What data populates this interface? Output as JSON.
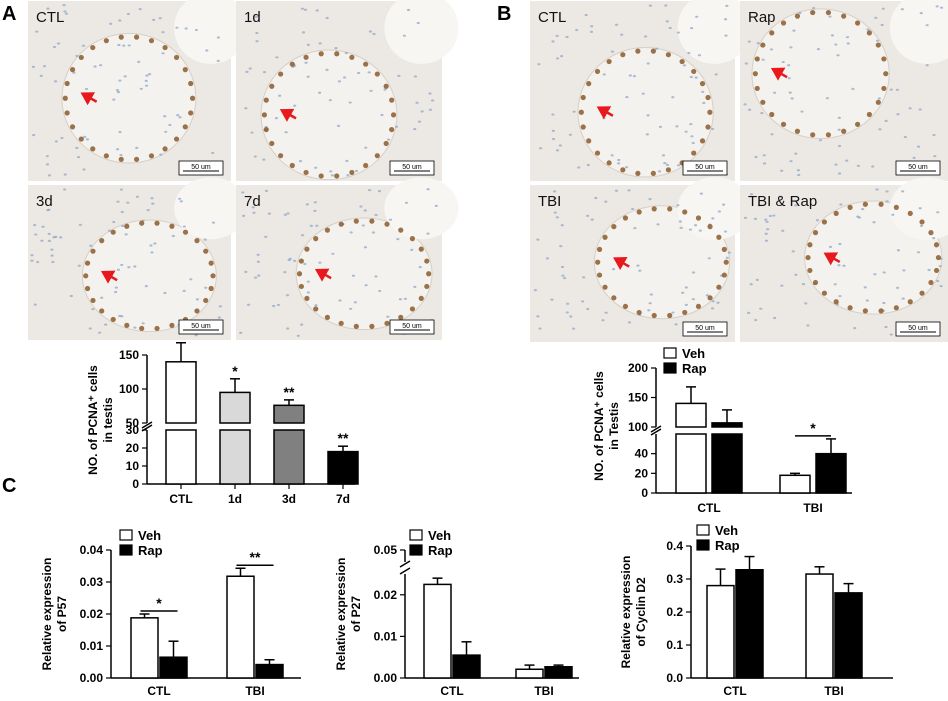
{
  "panels": {
    "A": {
      "letter": "A",
      "micrographs": [
        {
          "label": "CTL",
          "scale": "50 um"
        },
        {
          "label": "1d",
          "scale": "50 um"
        },
        {
          "label": "3d",
          "scale": "50 um"
        },
        {
          "label": "7d",
          "scale": "50 um"
        }
      ]
    },
    "B": {
      "letter": "B",
      "micrographs": [
        {
          "label": "CTL",
          "scale": "50 um"
        },
        {
          "label": "Rap",
          "scale": "50 um"
        },
        {
          "label": "TBI",
          "scale": "50 um"
        },
        {
          "label": "TBI & Rap",
          "scale": "50 um"
        }
      ]
    },
    "C": {
      "letter": "C"
    }
  },
  "colors": {
    "bar_light": "#d9d9d9",
    "bar_mid": "#808080",
    "bar_dark": "#000000",
    "arrow": "#e8191c",
    "tissue": "#ece9e4"
  },
  "chart_data": [
    {
      "id": "A-bar",
      "type": "bar",
      "ylabel_lines": [
        "NO. of PCNA⁺ cells",
        "in testis"
      ],
      "categories": [
        "CTL",
        "1d",
        "3d",
        "7d"
      ],
      "values": [
        140,
        95,
        76,
        18
      ],
      "errors": [
        28,
        20,
        8,
        3
      ],
      "bar_colors": [
        "#ffffff",
        "#d9d9d9",
        "#808080",
        "#000000"
      ],
      "ylim": [
        0,
        150
      ],
      "axis_break": [
        30,
        50
      ],
      "yticks_lower": [
        "0",
        "10",
        "20",
        "30"
      ],
      "yticks_upper": [
        "50",
        "100",
        "150"
      ],
      "significance": [
        "",
        "*",
        "**",
        "**"
      ]
    },
    {
      "id": "B-bar",
      "type": "bar",
      "ylabel_lines": [
        "NO. of PCNA⁺ cells",
        "in Testis"
      ],
      "categories": [
        "CTL",
        "TBI"
      ],
      "series": [
        {
          "name": "Veh",
          "values": [
            140,
            18
          ],
          "errors": [
            28,
            2
          ]
        },
        {
          "name": "Rap",
          "values": [
            107,
            40
          ],
          "errors": [
            22,
            15
          ]
        }
      ],
      "legend": "top-left",
      "ylim": [
        0,
        200
      ],
      "axis_break": [
        60,
        100
      ],
      "yticks_lower": [
        "0",
        "20",
        "40"
      ],
      "yticks_upper": [
        "100",
        "150",
        "200"
      ],
      "significance_label": "*"
    },
    {
      "id": "C-P57",
      "type": "bar",
      "ylabel_lines": [
        "Relative expression",
        "of P57"
      ],
      "categories": [
        "CTL",
        "TBI"
      ],
      "series": [
        {
          "name": "Veh",
          "values": [
            0.0188,
            0.0318
          ],
          "errors": [
            0.0012,
            0.0025
          ]
        },
        {
          "name": "Rap",
          "values": [
            0.0065,
            0.0042
          ],
          "errors": [
            0.005,
            0.0015
          ]
        }
      ],
      "legend": "top-left",
      "ylim": [
        0,
        0.04
      ],
      "yticks": [
        "0.00",
        "0.01",
        "0.02",
        "0.03",
        "0.04"
      ],
      "significance_labels": [
        "*",
        "**"
      ]
    },
    {
      "id": "C-P27",
      "type": "bar",
      "ylabel_lines": [
        "Relative expression",
        "of P27"
      ],
      "categories": [
        "CTL",
        "TBI"
      ],
      "series": [
        {
          "name": "Veh",
          "values": [
            0.0225,
            0.0021
          ],
          "errors": [
            0.0015,
            0.001
          ]
        },
        {
          "name": "Rap",
          "values": [
            0.0055,
            0.0027
          ],
          "errors": [
            0.0032,
            0.0004
          ]
        }
      ],
      "legend": "top-left",
      "ylim": [
        0,
        0.05
      ],
      "axis_break": [
        0.025,
        0.045
      ],
      "yticks": [
        "0.00",
        "0.01",
        "0.02",
        "0.05"
      ]
    },
    {
      "id": "C-CyclinD2",
      "type": "bar",
      "ylabel_lines": [
        "Relative expression",
        "of Cyclin D2"
      ],
      "categories": [
        "CTL",
        "TBI"
      ],
      "series": [
        {
          "name": "Veh",
          "values": [
            0.28,
            0.315
          ],
          "errors": [
            0.05,
            0.022
          ]
        },
        {
          "name": "Rap",
          "values": [
            0.328,
            0.258
          ],
          "errors": [
            0.04,
            0.028
          ]
        }
      ],
      "legend": "top-left",
      "ylim": [
        0,
        0.4
      ],
      "yticks": [
        "0.0",
        "0.1",
        "0.2",
        "0.3",
        "0.4"
      ]
    }
  ]
}
